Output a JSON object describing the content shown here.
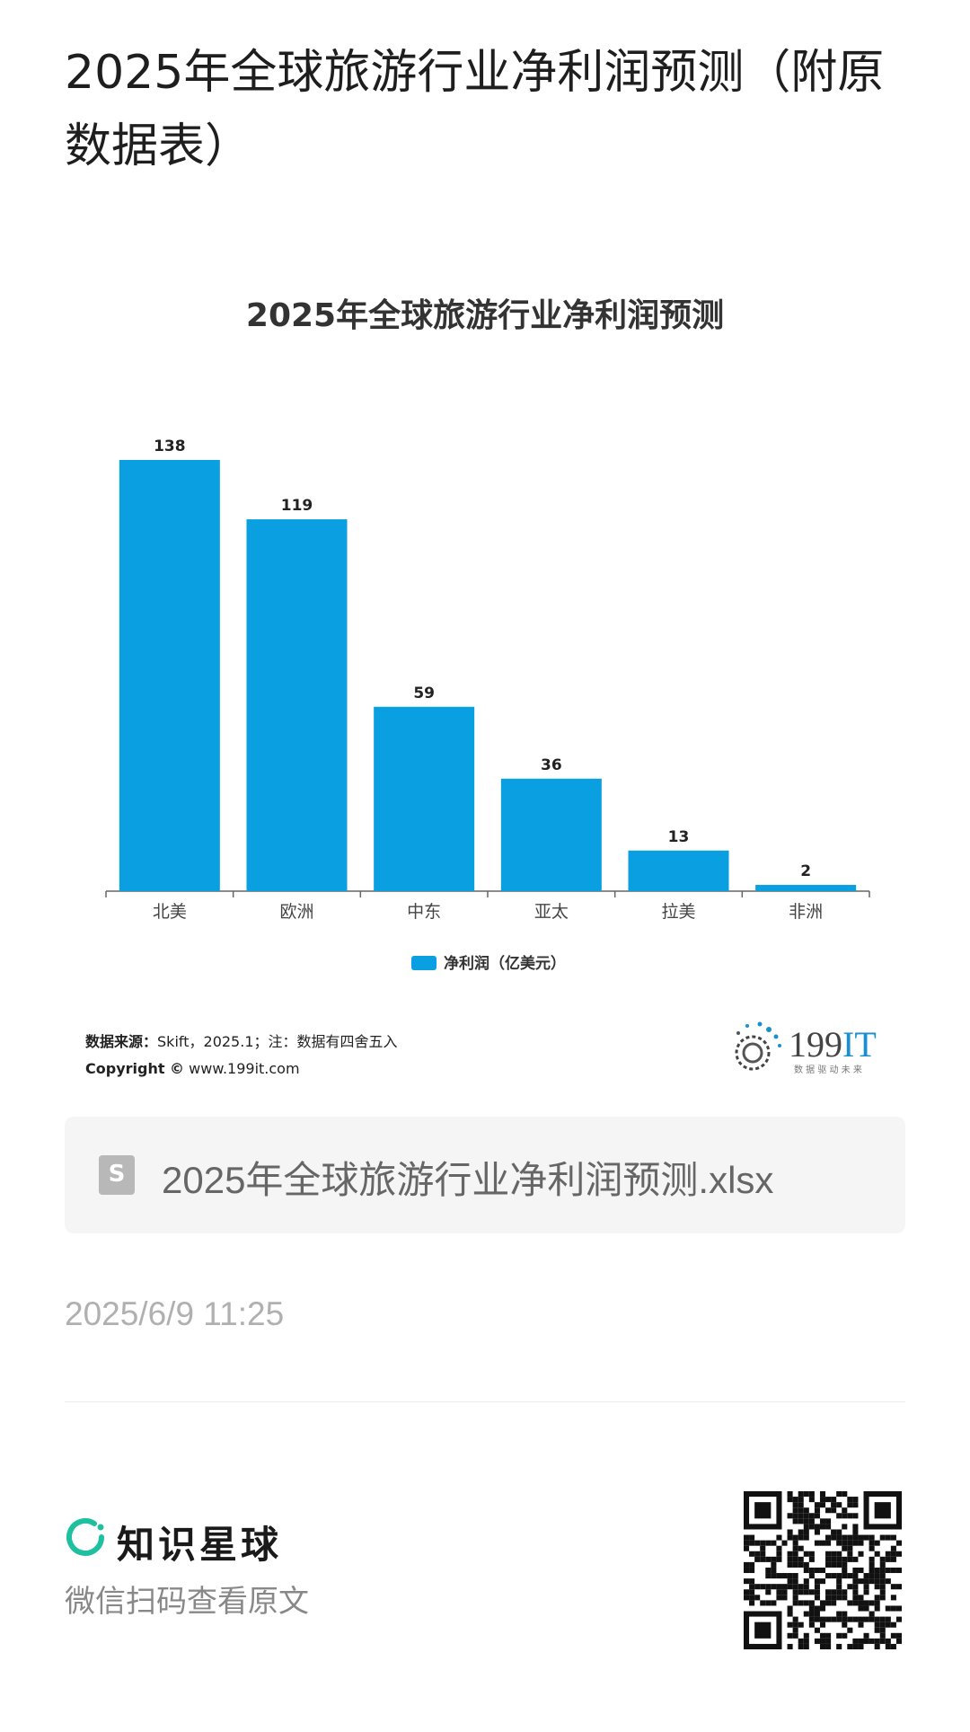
{
  "post_title": "2025年全球旅游行业净利润预测（附原数据表）",
  "chart_data": {
    "type": "bar",
    "title": "2025年全球旅游行业净利润预测",
    "categories": [
      "北美",
      "欧洲",
      "中东",
      "亚太",
      "拉美",
      "非洲"
    ],
    "series": [
      {
        "name": "净利润（亿美元）",
        "values": [
          138,
          119,
          59,
          36,
          13,
          2
        ],
        "color": "#0a9fe0"
      }
    ],
    "data_labels": [
      "138",
      "119",
      "59",
      "36",
      "13",
      "2"
    ],
    "legend_position": "bottom-center",
    "y_axis_visible": false,
    "grid": false
  },
  "source": {
    "label": "数据来源：",
    "text": "Skift，2025.1；注：数据有四舍五入",
    "copyright_label": "Copyright ©",
    "copyright_text": "www.199it.com"
  },
  "logo": {
    "name": "199IT",
    "tagline": "数 据 驱 动 未 来",
    "icon": "dot-swirl-logo-icon"
  },
  "file_attachment": {
    "icon": "spreadsheet-s-icon",
    "icon_letter": "S",
    "name": "2025年全球旅游行业净利润预测.xlsx"
  },
  "timestamp": "2025/6/9 11:25",
  "footer": {
    "brand_icon": "ring-logo-icon",
    "brand_name": "知识星球",
    "scan_hint": "微信扫码查看原文",
    "qr_icon": "qr-code-icon"
  },
  "colors": {
    "bar": "#0a9fe0",
    "brand_green": "#1ec0a0",
    "logo_blue": "#1a8fd0"
  }
}
